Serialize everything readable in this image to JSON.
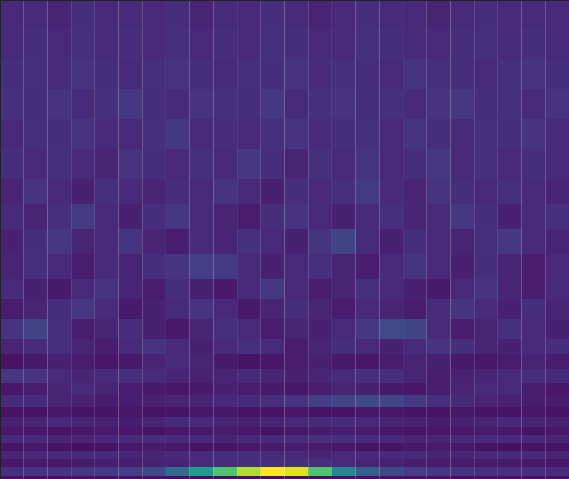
{
  "chart_data": {
    "type": "heatmap",
    "x_bins": [
      0,
      1,
      2,
      3,
      4,
      5,
      6,
      7,
      8,
      9,
      10,
      11,
      12,
      13,
      14,
      15,
      16,
      17,
      18,
      19,
      20,
      21,
      22,
      23,
      24
    ],
    "y_bins": [
      0,
      3,
      12,
      20,
      28,
      36,
      44,
      52,
      62,
      72,
      84,
      96,
      110,
      125,
      140,
      160,
      180,
      200,
      225,
      250,
      275,
      300,
      330,
      360,
      390,
      420,
      450,
      479
    ],
    "cells": [
      [
        0.04,
        0.04,
        0.04,
        0.04,
        0.04,
        0.04,
        0.04,
        0.04,
        0.04,
        0.04,
        0.04,
        0.04,
        0.04,
        0.04,
        0.04,
        0.04,
        0.04,
        0.04,
        0.04,
        0.04,
        0.04,
        0.04,
        0.04,
        0.04
      ],
      [
        0.14,
        0.15,
        0.15,
        0.16,
        0.17,
        0.18,
        0.22,
        0.35,
        0.55,
        0.72,
        0.88,
        1.0,
        0.95,
        0.72,
        0.46,
        0.3,
        0.22,
        0.18,
        0.16,
        0.15,
        0.14,
        0.14,
        0.13,
        0.12
      ],
      [
        0.06,
        0.07,
        0.06,
        0.07,
        0.08,
        0.08,
        0.09,
        0.1,
        0.12,
        0.13,
        0.13,
        0.14,
        0.14,
        0.13,
        0.11,
        0.1,
        0.09,
        0.08,
        0.08,
        0.07,
        0.07,
        0.07,
        0.06,
        0.06
      ],
      [
        0.1,
        0.11,
        0.12,
        0.12,
        0.11,
        0.1,
        0.1,
        0.11,
        0.12,
        0.13,
        0.13,
        0.12,
        0.11,
        0.1,
        0.11,
        0.12,
        0.12,
        0.11,
        0.1,
        0.1,
        0.11,
        0.12,
        0.11,
        0.1
      ],
      [
        0.05,
        0.06,
        0.05,
        0.04,
        0.05,
        0.06,
        0.07,
        0.06,
        0.05,
        0.05,
        0.06,
        0.07,
        0.08,
        0.07,
        0.06,
        0.05,
        0.05,
        0.06,
        0.07,
        0.06,
        0.05,
        0.04,
        0.05,
        0.05
      ],
      [
        0.11,
        0.12,
        0.1,
        0.1,
        0.11,
        0.12,
        0.13,
        0.12,
        0.11,
        0.1,
        0.11,
        0.12,
        0.13,
        0.14,
        0.13,
        0.12,
        0.11,
        0.1,
        0.1,
        0.11,
        0.12,
        0.12,
        0.11,
        0.1
      ],
      [
        0.06,
        0.06,
        0.05,
        0.06,
        0.07,
        0.06,
        0.05,
        0.06,
        0.06,
        0.07,
        0.06,
        0.05,
        0.06,
        0.07,
        0.08,
        0.07,
        0.06,
        0.05,
        0.06,
        0.06,
        0.07,
        0.06,
        0.05,
        0.06
      ],
      [
        0.09,
        0.1,
        0.11,
        0.1,
        0.09,
        0.08,
        0.1,
        0.12,
        0.11,
        0.1,
        0.09,
        0.1,
        0.11,
        0.12,
        0.12,
        0.11,
        0.1,
        0.09,
        0.08,
        0.09,
        0.1,
        0.11,
        0.1,
        0.09
      ],
      [
        0.05,
        0.05,
        0.06,
        0.05,
        0.05,
        0.06,
        0.05,
        0.05,
        0.06,
        0.06,
        0.05,
        0.05,
        0.06,
        0.05,
        0.05,
        0.06,
        0.06,
        0.05,
        0.05,
        0.06,
        0.05,
        0.05,
        0.06,
        0.05
      ],
      [
        0.12,
        0.12,
        0.1,
        0.09,
        0.08,
        0.08,
        0.09,
        0.1,
        0.1,
        0.11,
        0.12,
        0.13,
        0.15,
        0.18,
        0.2,
        0.22,
        0.2,
        0.17,
        0.14,
        0.12,
        0.1,
        0.09,
        0.08,
        0.08
      ],
      [
        0.06,
        0.08,
        0.1,
        0.12,
        0.1,
        0.08,
        0.07,
        0.06,
        0.07,
        0.09,
        0.08,
        0.07,
        0.06,
        0.08,
        0.1,
        0.09,
        0.07,
        0.06,
        0.08,
        0.1,
        0.12,
        0.11,
        0.08,
        0.06
      ],
      [
        0.16,
        0.15,
        0.12,
        0.1,
        0.12,
        0.14,
        0.12,
        0.1,
        0.09,
        0.1,
        0.12,
        0.1,
        0.09,
        0.1,
        0.12,
        0.14,
        0.13,
        0.1,
        0.08,
        0.09,
        0.1,
        0.12,
        0.13,
        0.12
      ],
      [
        0.05,
        0.07,
        0.09,
        0.08,
        0.06,
        0.07,
        0.1,
        0.12,
        0.1,
        0.07,
        0.05,
        0.06,
        0.08,
        0.09,
        0.07,
        0.06,
        0.08,
        0.1,
        0.09,
        0.07,
        0.06,
        0.08,
        0.1,
        0.08
      ],
      [
        0.1,
        0.12,
        0.14,
        0.1,
        0.08,
        0.12,
        0.15,
        0.12,
        0.09,
        0.11,
        0.14,
        0.12,
        0.08,
        0.1,
        0.13,
        0.11,
        0.09,
        0.12,
        0.15,
        0.13,
        0.1,
        0.09,
        0.11,
        0.13
      ],
      [
        0.15,
        0.2,
        0.14,
        0.08,
        0.1,
        0.13,
        0.09,
        0.07,
        0.1,
        0.14,
        0.11,
        0.08,
        0.1,
        0.09,
        0.12,
        0.16,
        0.22,
        0.2,
        0.12,
        0.08,
        0.1,
        0.14,
        0.11,
        0.09
      ],
      [
        0.08,
        0.1,
        0.13,
        0.16,
        0.12,
        0.07,
        0.09,
        0.12,
        0.15,
        0.11,
        0.07,
        0.1,
        0.13,
        0.1,
        0.08,
        0.11,
        0.1,
        0.08,
        0.12,
        0.15,
        0.12,
        0.09,
        0.13,
        0.1
      ],
      [
        0.12,
        0.09,
        0.07,
        0.11,
        0.15,
        0.1,
        0.08,
        0.13,
        0.09,
        0.07,
        0.12,
        0.16,
        0.11,
        0.08,
        0.1,
        0.14,
        0.12,
        0.09,
        0.07,
        0.11,
        0.15,
        0.1,
        0.08,
        0.12
      ],
      [
        0.1,
        0.14,
        0.11,
        0.08,
        0.12,
        0.1,
        0.13,
        0.15,
        0.18,
        0.17,
        0.12,
        0.09,
        0.11,
        0.14,
        0.1,
        0.08,
        0.12,
        0.15,
        0.11,
        0.09,
        0.13,
        0.1,
        0.08,
        0.11
      ],
      [
        0.09,
        0.13,
        0.16,
        0.1,
        0.12,
        0.15,
        0.1,
        0.08,
        0.12,
        0.1,
        0.14,
        0.11,
        0.09,
        0.15,
        0.2,
        0.12,
        0.09,
        0.13,
        0.11,
        0.1,
        0.14,
        0.16,
        0.12,
        0.1
      ],
      [
        0.12,
        0.1,
        0.14,
        0.17,
        0.11,
        0.09,
        0.13,
        0.16,
        0.12,
        0.1,
        0.08,
        0.13,
        0.15,
        0.11,
        0.09,
        0.12,
        0.14,
        0.1,
        0.12,
        0.16,
        0.13,
        0.09,
        0.11,
        0.14
      ],
      [
        0.1,
        0.15,
        0.12,
        0.09,
        0.14,
        0.12,
        0.1,
        0.13,
        0.11,
        0.15,
        0.12,
        0.09,
        0.13,
        0.11,
        0.14,
        0.17,
        0.12,
        0.1,
        0.15,
        0.13,
        0.11,
        0.14,
        0.12,
        0.1
      ],
      [
        0.13,
        0.11,
        0.14,
        0.12,
        0.1,
        0.15,
        0.13,
        0.11,
        0.14,
        0.12,
        0.16,
        0.13,
        0.1,
        0.14,
        0.12,
        0.15,
        0.11,
        0.13,
        0.16,
        0.12,
        0.14,
        0.11,
        0.13,
        0.12
      ],
      [
        0.12,
        0.14,
        0.13,
        0.15,
        0.12,
        0.11,
        0.14,
        0.16,
        0.12,
        0.13,
        0.11,
        0.14,
        0.15,
        0.12,
        0.13,
        0.14,
        0.11,
        0.15,
        0.13,
        0.12,
        0.14,
        0.13,
        0.15,
        0.12
      ],
      [
        0.14,
        0.13,
        0.15,
        0.12,
        0.14,
        0.16,
        0.13,
        0.12,
        0.15,
        0.14,
        0.13,
        0.16,
        0.12,
        0.14,
        0.15,
        0.13,
        0.14,
        0.12,
        0.15,
        0.16,
        0.13,
        0.14,
        0.12,
        0.15
      ],
      [
        0.13,
        0.14,
        0.12,
        0.15,
        0.13,
        0.12,
        0.14,
        0.15,
        0.13,
        0.12,
        0.14,
        0.13,
        0.15,
        0.12,
        0.14,
        0.13,
        0.12,
        0.15,
        0.14,
        0.13,
        0.12,
        0.14,
        0.15,
        0.13
      ],
      [
        0.12,
        0.13,
        0.11,
        0.14,
        0.12,
        0.13,
        0.12,
        0.14,
        0.11,
        0.13,
        0.12,
        0.14,
        0.13,
        0.11,
        0.12,
        0.14,
        0.13,
        0.12,
        0.11,
        0.13,
        0.14,
        0.12,
        0.13,
        0.12
      ],
      [
        0.11,
        0.12,
        0.1,
        0.13,
        0.11,
        0.12,
        0.11,
        0.13,
        0.1,
        0.12,
        0.11,
        0.13,
        0.12,
        0.1,
        0.11,
        0.13,
        0.12,
        0.11,
        0.1,
        0.12,
        0.13,
        0.11,
        0.12,
        0.11
      ]
    ],
    "xlim": [
      0,
      24
    ],
    "ylim": [
      0,
      479
    ],
    "zlim": [
      0,
      1
    ],
    "color": "viridis",
    "tick_labels": false
  }
}
